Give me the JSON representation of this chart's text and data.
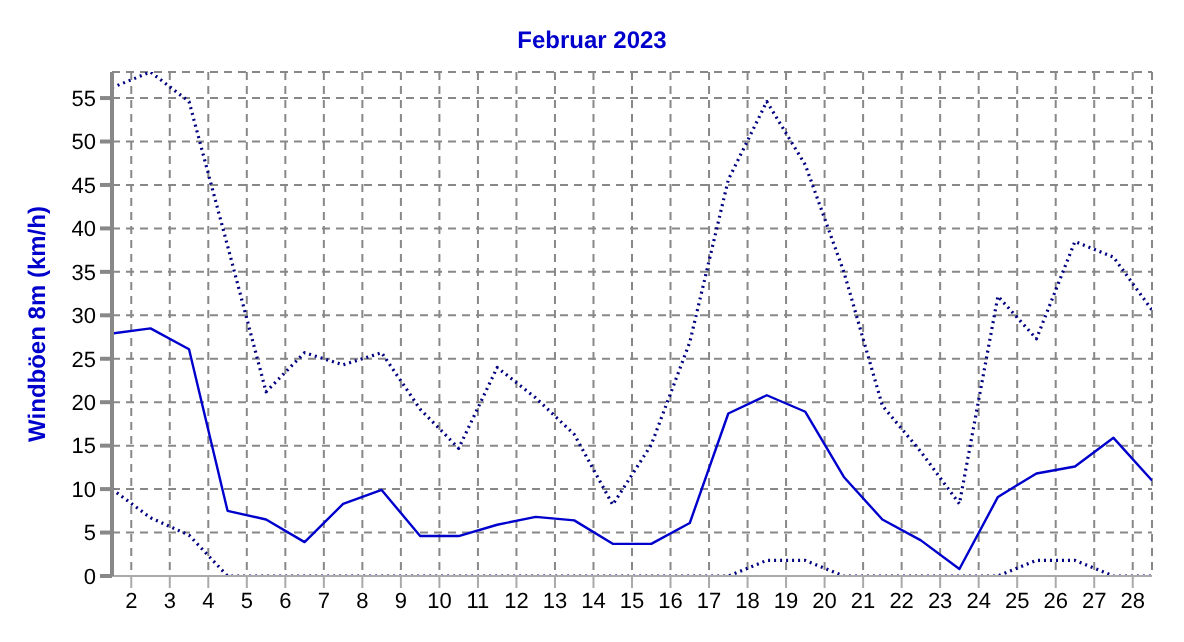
{
  "chart_data": {
    "type": "line",
    "title": "Februar 2023",
    "ylabel": "Windböen 8m  (km/h)",
    "x": [
      1.5,
      2.5,
      3.5,
      4.5,
      5.5,
      6.5,
      7.5,
      8.5,
      9.5,
      10.5,
      11.5,
      12.5,
      13.5,
      14.5,
      15.5,
      16.5,
      17.5,
      18.5,
      19.5,
      20.5,
      21.5,
      22.5,
      23.5,
      24.5,
      25.5,
      26.5,
      27.5,
      28.5
    ],
    "series": [
      {
        "color": "#000080",
        "line_style": "dotted",
        "values": [
          56.2,
          58,
          54.6,
          38,
          21.2,
          25.7,
          24.3,
          25.7,
          19.2,
          14.7,
          24,
          20.5,
          16.3,
          8.2,
          15.1,
          26.9,
          45.6,
          54.6,
          47.3,
          35,
          19.6,
          14.3,
          8.3,
          32.2,
          27.3,
          38.5,
          36.7,
          30.6
        ]
      },
      {
        "color": "#0000cc",
        "line_style": "solid",
        "values": [
          27.9,
          28.5,
          26.1,
          7.5,
          6.5,
          3.9,
          8.3,
          9.9,
          4.6,
          4.6,
          5.9,
          6.8,
          6.4,
          3.7,
          3.7,
          6.1,
          18.7,
          20.8,
          18.9,
          11.4,
          6.5,
          4.1,
          0.8,
          9.1,
          11.8,
          12.6,
          15.9,
          11
        ]
      },
      {
        "color": "#000080",
        "line_style": "dotted",
        "values": [
          10,
          6.7,
          4.7,
          0,
          0,
          0,
          0,
          0,
          0,
          0,
          0,
          0,
          0,
          0,
          0,
          0,
          0,
          1.8,
          1.8,
          0,
          0,
          0,
          0,
          0,
          1.8,
          1.8,
          0,
          0
        ]
      }
    ],
    "xlim": [
      1.5,
      28.5
    ],
    "xticks": [
      2,
      3,
      4,
      5,
      6,
      7,
      8,
      9,
      10,
      11,
      12,
      13,
      14,
      15,
      16,
      17,
      18,
      19,
      20,
      21,
      22,
      23,
      24,
      25,
      26,
      27,
      28
    ],
    "ylim": [
      0,
      58
    ],
    "yticks": [
      0,
      5,
      10,
      15,
      20,
      25,
      30,
      35,
      40,
      45,
      50,
      55
    ],
    "grid": true,
    "legend": false,
    "marker": "none"
  }
}
